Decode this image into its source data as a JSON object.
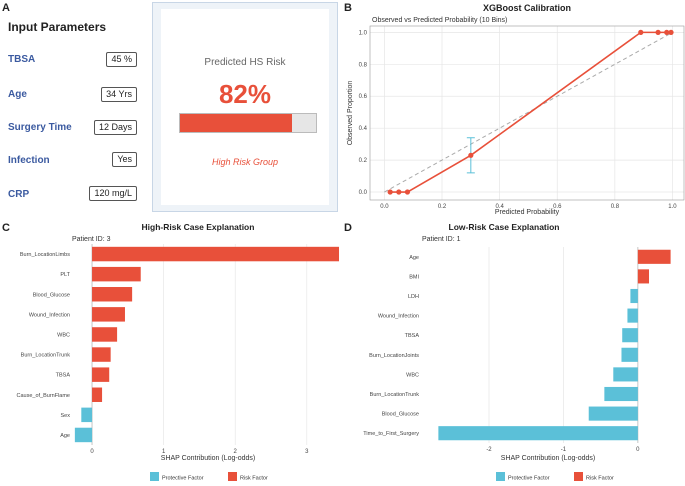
{
  "panel_labels": {
    "a": "A",
    "b": "B",
    "c": "C",
    "d": "D"
  },
  "input_panel": {
    "title": "Input Parameters",
    "params": [
      {
        "label": "TBSA",
        "value": "45 %"
      },
      {
        "label": "Age",
        "value": "34 Yrs"
      },
      {
        "label": "Surgery Time",
        "value": "12 Days"
      },
      {
        "label": "Infection",
        "value": "Yes"
      },
      {
        "label": "CRP",
        "value": "120 mg/L"
      }
    ]
  },
  "risk_card": {
    "title": "Predicted HS Risk",
    "value": "82%",
    "fraction": 0.82,
    "group": "High Risk Group",
    "accent": "#e8503a"
  },
  "colors": {
    "risk": "#e8503a",
    "protective": "#5bc0d8",
    "grid": "#e6e6e6",
    "errorbar": "#5bc0d8"
  },
  "chart_data": [
    {
      "type": "line",
      "title": "XGBoost Calibration",
      "subtitle": "Observed vs Predicted Probability (10 Bins)",
      "xlabel": "Predicted Probability",
      "ylabel": "Observed Proportion",
      "xlim": [
        -0.05,
        1.04
      ],
      "ylim": [
        -0.05,
        1.04
      ],
      "xticks": [
        0.0,
        0.2,
        0.4,
        0.6,
        0.8,
        1.0
      ],
      "xtick_labels": [
        "0.0",
        "0.2",
        "0.4",
        "0.6",
        "0.8",
        "1.0"
      ],
      "yticks": [
        0.0,
        0.2,
        0.4,
        0.6,
        0.8,
        1.0
      ],
      "ytick_labels": [
        "0.0",
        "0.2",
        "0.4",
        "0.6",
        "0.8",
        "1.0"
      ],
      "grid": true,
      "reference_line": [
        [
          0,
          0
        ],
        [
          1,
          1
        ]
      ],
      "points": [
        {
          "x": 0.02,
          "y": 0.0
        },
        {
          "x": 0.05,
          "y": 0.0
        },
        {
          "x": 0.08,
          "y": 0.0
        },
        {
          "x": 0.3,
          "y": 0.23,
          "err_low": 0.12,
          "err_high": 0.34
        },
        {
          "x": 0.89,
          "y": 1.0
        },
        {
          "x": 0.95,
          "y": 1.0
        },
        {
          "x": 0.98,
          "y": 1.0
        },
        {
          "x": 0.995,
          "y": 1.0
        }
      ]
    },
    {
      "type": "bar",
      "orientation": "horizontal",
      "title": "High-Risk Case Explanation",
      "subtitle": "Patient ID: 3",
      "xlabel": "SHAP Contribution (Log-odds)",
      "xlim": [
        -0.28,
        3.38
      ],
      "xticks": [
        0,
        1,
        2,
        3
      ],
      "xtick_labels": [
        "0",
        "1",
        "2",
        "3"
      ],
      "categories": [
        "Burn_LocationLimbs",
        "PLT",
        "Blood_Glucose",
        "Wound_Infection",
        "WBC",
        "Burn_LocationTrunk",
        "TBSA",
        "Cause_of_BurnFlame",
        "Sex",
        "Age"
      ],
      "values": [
        3.45,
        0.68,
        0.56,
        0.46,
        0.35,
        0.26,
        0.24,
        0.14,
        -0.15,
        -0.24
      ],
      "legend": [
        {
          "label": "Protective Factor",
          "color": "#5bc0d8"
        },
        {
          "label": "Risk Factor",
          "color": "#e8503a"
        }
      ],
      "legend_position": "bottom"
    },
    {
      "type": "bar",
      "orientation": "horizontal",
      "title": "Low-Risk Case Explanation",
      "subtitle": "Patient ID: 1",
      "xlabel": "SHAP Contribution (Log-odds)",
      "xlim": [
        -2.9,
        0.62
      ],
      "xticks": [
        -2,
        -1,
        0
      ],
      "xtick_labels": [
        "-2",
        "-1",
        "0"
      ],
      "categories": [
        "Age",
        "BMI",
        "LDH",
        "Wound_Infection",
        "TBSA",
        "Burn_LocationJoints",
        "WBC",
        "Burn_LocationTrunk",
        "Blood_Glucose",
        "Time_to_First_Surgery"
      ],
      "values": [
        0.44,
        0.15,
        -0.1,
        -0.14,
        -0.21,
        -0.22,
        -0.33,
        -0.45,
        -0.66,
        -2.68
      ],
      "legend": [
        {
          "label": "Protective Factor",
          "color": "#5bc0d8"
        },
        {
          "label": "Risk Factor",
          "color": "#e8503a"
        }
      ],
      "legend_position": "bottom"
    }
  ]
}
